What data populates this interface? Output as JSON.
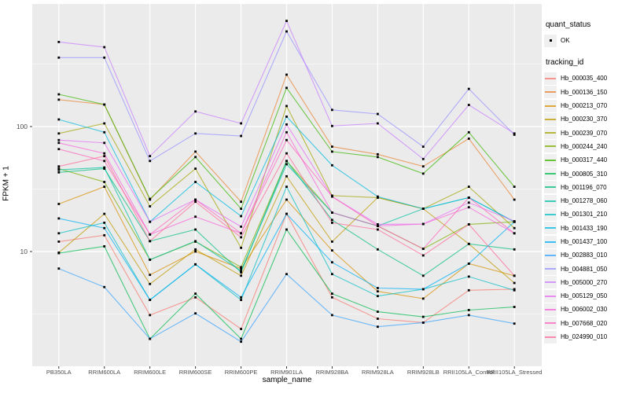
{
  "figure": {
    "background": "#FFFFFF",
    "panel_bg": "#EBEBEB",
    "grid_color": "#FFFFFF",
    "axis_text_color": "#4D4D4D",
    "tick_color": "#333333",
    "marker_color": "#000000",
    "legend_key_bg": "#F0F0F0"
  },
  "legend": {
    "quant_status_title": "quant_status",
    "quant_status_items": [
      {
        "label": "OK",
        "marker": "black-point"
      }
    ],
    "tracking_id_title": "tracking_id"
  },
  "axes": {
    "y_tick_labels": [
      "100",
      "10"
    ],
    "y_tick_values": [
      100,
      10
    ],
    "y_minor_values": [
      3.162,
      31.62,
      316.2
    ]
  },
  "chart_data": {
    "type": "line",
    "title": "",
    "xlabel": "sample_name",
    "ylabel": "FPKM + 1",
    "y_scale": "log10",
    "ylim": [
      1.2,
      955
    ],
    "grid": true,
    "legend_position": "right",
    "point_marker": "small-black-square (quant_status = OK)",
    "categories": [
      "PB350LA",
      "RRIM600LA",
      "RRIM600LE",
      "RRIM600SE",
      "RRIM600PE",
      "RRIM901LA",
      "RRIM928BA",
      "RRIM928LA",
      "RRIM928LB",
      "RRII105LA_Control",
      "RRII105LA_Stressed"
    ],
    "series": [
      {
        "name": "Hb_000035_400",
        "color": "#F8766D",
        "values": [
          12,
          13.5,
          3.1,
          4.3,
          2.4,
          20,
          4.3,
          2.9,
          2.7,
          4.9,
          5.0
        ]
      },
      {
        "name": "Hb_000136_150",
        "color": "#EA8331",
        "values": [
          164,
          150,
          26,
          63,
          25,
          260,
          69,
          60,
          48,
          80,
          26
        ]
      },
      {
        "name": "Hb_000213_070",
        "color": "#D89000",
        "values": [
          24,
          33,
          6.5,
          10,
          7.3,
          26,
          10.2,
          4.8,
          4.2,
          8.0,
          6.4
        ]
      },
      {
        "name": "Hb_000230_370",
        "color": "#C09B00",
        "values": [
          9.8,
          20,
          5.5,
          10.4,
          6.4,
          40,
          12,
          27,
          22,
          11.5,
          5.6
        ]
      },
      {
        "name": "Hb_000239_070",
        "color": "#A3A500",
        "values": [
          88,
          106,
          23,
          46,
          10.7,
          146,
          28,
          27,
          22,
          33,
          15.4
        ]
      },
      {
        "name": "Hb_000244_240",
        "color": "#7CAE00",
        "values": [
          46,
          36,
          8.6,
          12,
          7.5,
          53,
          20.5,
          16,
          10.5,
          16.5,
          17.3
        ]
      },
      {
        "name": "Hb_000317_440",
        "color": "#39B600",
        "values": [
          181,
          150,
          26.4,
          57,
          22,
          204,
          63,
          57,
          42,
          90,
          33
        ]
      },
      {
        "name": "Hb_000805_310",
        "color": "#00BB4E",
        "values": [
          9.7,
          11,
          2.0,
          4.6,
          2.0,
          15,
          4.6,
          3.3,
          3.0,
          3.4,
          3.6
        ]
      },
      {
        "name": "Hb_001196_070",
        "color": "#00BF7D",
        "values": [
          43,
          46,
          12.1,
          15,
          6.8,
          53,
          17.9,
          10.4,
          6.4,
          11.5,
          10.4
        ]
      },
      {
        "name": "Hb_001278_060",
        "color": "#00C1A3",
        "values": [
          45,
          47,
          8.6,
          12.1,
          7.0,
          50,
          20.5,
          16,
          22,
          27,
          17.3
        ]
      },
      {
        "name": "Hb_001301_210",
        "color": "#00BFC4",
        "values": [
          14,
          17,
          4.1,
          7.9,
          4.1,
          33,
          6.6,
          4.4,
          5.0,
          6.3,
          4.9
        ]
      },
      {
        "name": "Hb_001433_190",
        "color": "#00BAE0",
        "values": [
          114,
          90,
          17.3,
          36,
          19.2,
          120,
          49,
          27.5,
          22,
          27,
          17.3
        ]
      },
      {
        "name": "Hb_001437_100",
        "color": "#00B0F6",
        "values": [
          18.4,
          15.4,
          4.1,
          7.9,
          4.3,
          20,
          8.2,
          5.1,
          5.0,
          8.0,
          17.3
        ]
      },
      {
        "name": "Hb_002883_010",
        "color": "#35A2FF",
        "values": [
          7.3,
          5.2,
          2.0,
          3.2,
          1.9,
          6.6,
          3.1,
          2.5,
          2.7,
          3.1,
          2.65
        ]
      },
      {
        "name": "Hb_004881_050",
        "color": "#9590FF",
        "values": [
          356,
          356,
          53,
          88,
          84,
          577,
          136,
          126,
          69,
          200,
          86
        ]
      },
      {
        "name": "Hb_005000_270",
        "color": "#C77CFF",
        "values": [
          475,
          432,
          58,
          132,
          106,
          700,
          101,
          106,
          55,
          149,
          88
        ]
      },
      {
        "name": "Hb_005129_050",
        "color": "#E76BF3",
        "values": [
          78,
          74,
          17.3,
          26,
          15.8,
          104,
          27.5,
          16.5,
          16.6,
          24.6,
          17.5
        ]
      },
      {
        "name": "Hb_006002_030",
        "color": "#FA62DB",
        "values": [
          74,
          61,
          13.7,
          19,
          14,
          90,
          20.5,
          16,
          16.6,
          22.6,
          14
        ]
      },
      {
        "name": "Hb_007668_020",
        "color": "#FF62BC",
        "values": [
          66,
          53,
          13.7,
          26,
          14,
          78,
          27.5,
          16,
          10.5,
          27,
          14
        ]
      },
      {
        "name": "Hb_024990_010",
        "color": "#FF6A98",
        "values": [
          48,
          58,
          12.1,
          25,
          13,
          61,
          17,
          15,
          9.3,
          16.5,
          6.4
        ]
      }
    ]
  }
}
